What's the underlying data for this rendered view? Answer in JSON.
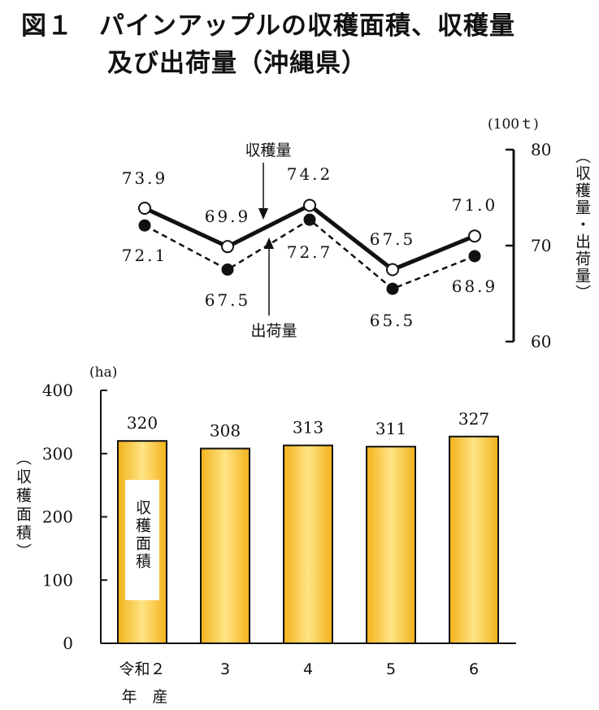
{
  "title": {
    "line1": "図１　パインアップルの収穫面積、収穫量",
    "line2": "及び出荷量（沖縄県）"
  },
  "chart_data": [
    {
      "type": "line",
      "categories": [
        "令和２",
        "3",
        "4",
        "5",
        "6"
      ],
      "series": [
        {
          "name": "収穫量",
          "values": [
            73.9,
            69.9,
            74.2,
            67.5,
            71.0
          ],
          "labels": [
            "73.9",
            "69.9",
            "74.2",
            "67.5",
            "71.0"
          ],
          "style": "solid",
          "marker": "open-circle"
        },
        {
          "name": "出荷量",
          "values": [
            72.1,
            67.5,
            72.7,
            65.5,
            68.9
          ],
          "labels": [
            "72.1",
            "67.5",
            "72.7",
            "65.5",
            "68.9"
          ],
          "style": "dashed",
          "marker": "filled-circle"
        }
      ],
      "ylim": [
        60,
        80
      ],
      "yticks": [
        "80",
        "70",
        "60"
      ],
      "yaxis_position": "right",
      "unit": "(100ｔ)",
      "ylabel": "（収穫量・出荷量）",
      "colors": {
        "line": "#111111"
      }
    },
    {
      "type": "bar",
      "categories": [
        "令和２",
        "3",
        "4",
        "5",
        "6"
      ],
      "category_sublabel": "年　産",
      "values": [
        320,
        308,
        313,
        311,
        327
      ],
      "ylim": [
        0,
        400
      ],
      "yticks": [
        "400",
        "300",
        "200",
        "100",
        "0"
      ],
      "unit": "(ha)",
      "ylabel": "（収穫面積）",
      "bar_label": "収穫面積",
      "colors": {
        "bar_edge": "#f2b21a",
        "bar_center": "#ffe486",
        "outline": "#111111"
      }
    }
  ]
}
